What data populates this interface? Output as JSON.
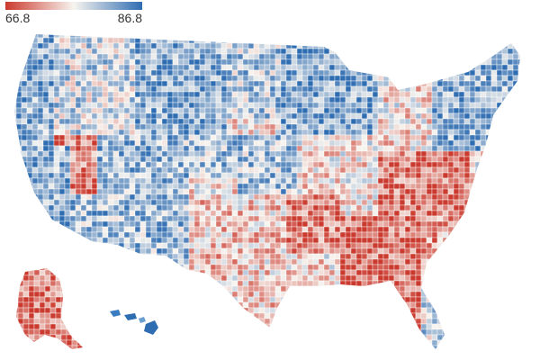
{
  "legend": {
    "min_label": "66.8",
    "max_label": "86.8",
    "min_value": 66.8,
    "max_value": 86.8,
    "color_low": "#cb3a2e",
    "color_mid": "#f7f4ef",
    "color_high": "#2f6db2"
  },
  "map": {
    "regions": [
      {
        "name": "northwest",
        "level": 0.62
      },
      {
        "name": "pacific-coast",
        "level": 0.78
      },
      {
        "name": "nevada",
        "level": 0.18
      },
      {
        "name": "southwest",
        "level": 0.72
      },
      {
        "name": "northern-rockies",
        "level": 0.8
      },
      {
        "name": "dakotas",
        "level": 0.68
      },
      {
        "name": "upper-midwest",
        "level": 0.82
      },
      {
        "name": "great-plains",
        "level": 0.7
      },
      {
        "name": "texas",
        "level": 0.38
      },
      {
        "name": "oklahoma-arkansas",
        "level": 0.18
      },
      {
        "name": "deep-south",
        "level": 0.12
      },
      {
        "name": "appalachia",
        "level": 0.15
      },
      {
        "name": "midwest",
        "level": 0.45
      },
      {
        "name": "northeast",
        "level": 0.78
      },
      {
        "name": "florida",
        "level": 0.62
      },
      {
        "name": "southeast-coast",
        "level": 0.28
      },
      {
        "name": "alaska",
        "level": 0.15
      },
      {
        "name": "hawaii",
        "level": 0.85
      }
    ]
  }
}
